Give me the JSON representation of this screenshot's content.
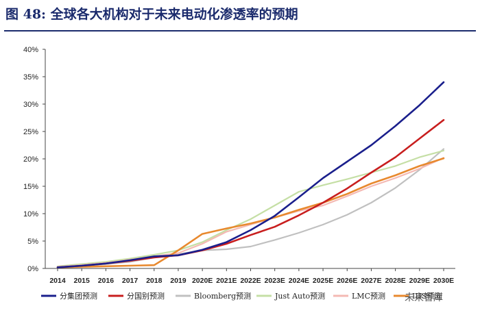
{
  "figure_title": "图 48:  全球各大机构对于未来电动化渗透率的预期",
  "watermark": "未来智库",
  "chart_data": {
    "type": "line",
    "title": "图 48:  全球各大机构对于未来电动化渗透率的预期",
    "xlabel": "",
    "ylabel": "",
    "ylim": [
      0,
      40
    ],
    "y_ticks": [
      "0%",
      "5%",
      "10%",
      "15%",
      "20%",
      "25%",
      "30%",
      "35%",
      "40%"
    ],
    "y_tick_values": [
      0,
      5,
      10,
      15,
      20,
      25,
      30,
      35,
      40
    ],
    "categories": [
      "2014",
      "2015",
      "2016",
      "2017",
      "2018",
      "2019",
      "2020E",
      "2021E",
      "2022E",
      "2023E",
      "2024E",
      "2025E",
      "2026E",
      "2027E",
      "2028E",
      "2029E",
      "2030E"
    ],
    "grid": false,
    "legend_position": "bottom",
    "series": [
      {
        "name": "分集团预测",
        "color": "#1a1f8c",
        "values": [
          0.2,
          0.5,
          0.9,
          1.5,
          2.2,
          2.4,
          3.4,
          4.8,
          7.0,
          9.6,
          13.0,
          16.5,
          19.5,
          22.5,
          26.0,
          29.8,
          34.0
        ]
      },
      {
        "name": "分国别预测",
        "color": "#c81e1e",
        "values": [
          0.2,
          0.5,
          0.9,
          1.4,
          2.0,
          2.4,
          3.3,
          4.5,
          6.1,
          7.6,
          9.7,
          12.0,
          14.6,
          17.5,
          20.3,
          23.7,
          27.1
        ]
      },
      {
        "name": "Bloomberg预测",
        "color": "#c0c0c0",
        "values": [
          0.2,
          0.5,
          0.8,
          1.2,
          2.0,
          2.6,
          3.3,
          3.5,
          4.0,
          5.2,
          6.5,
          8.0,
          9.8,
          12.0,
          14.7,
          18.0,
          21.8
        ]
      },
      {
        "name": "Just Auto预测",
        "color": "#c5dfa5",
        "values": [
          0.4,
          0.8,
          1.2,
          1.8,
          2.5,
          3.3,
          4.8,
          7.0,
          9.0,
          11.5,
          14.0,
          15.2,
          16.3,
          17.5,
          18.7,
          20.3,
          21.5
        ]
      },
      {
        "name": "LMC预测",
        "color": "#f4b9b3",
        "values": [
          0.3,
          0.6,
          1.0,
          1.6,
          2.2,
          2.8,
          4.5,
          6.7,
          8.0,
          9.3,
          10.5,
          11.5,
          13.2,
          15.0,
          16.5,
          18.2,
          20.2
        ]
      },
      {
        "name": "IHS预测",
        "color": "#e8892e",
        "values": [
          0.2,
          0.3,
          0.4,
          0.5,
          0.6,
          3.3,
          6.3,
          7.3,
          8.2,
          9.3,
          10.7,
          12.0,
          13.6,
          15.5,
          17.0,
          18.7,
          20.1
        ]
      }
    ]
  }
}
